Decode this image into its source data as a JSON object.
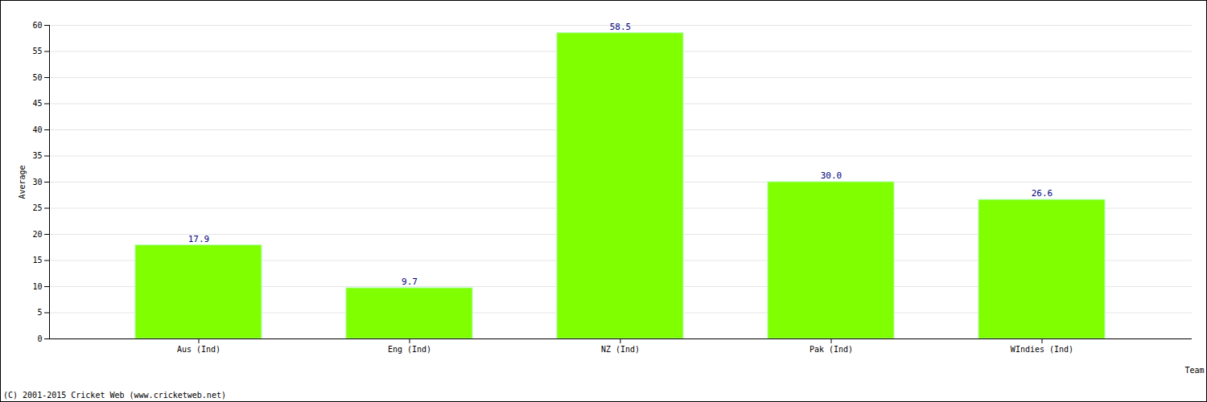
{
  "chart_data": {
    "type": "bar",
    "caption": "(C) 2001-2015 Cricket Web (www.cricketweb.net)",
    "x_label": "Team",
    "y_label": "Average",
    "categories": [
      "Aus (Ind)",
      "Eng (Ind)",
      "NZ (Ind)",
      "Pak (Ind)",
      "WIndies (Ind)"
    ],
    "values": [
      17.9,
      9.7,
      58.5,
      30.0,
      26.6
    ],
    "value_labels": [
      "17.9",
      "9.7",
      "58.5",
      "30.0",
      "26.6"
    ],
    "color": "#80ff00",
    "ylim": [
      0,
      60
    ],
    "yticks": [
      0,
      5,
      10,
      15,
      20,
      25,
      30,
      35,
      40,
      45,
      50,
      55,
      60
    ],
    "grid": true,
    "data_labels": true
  }
}
